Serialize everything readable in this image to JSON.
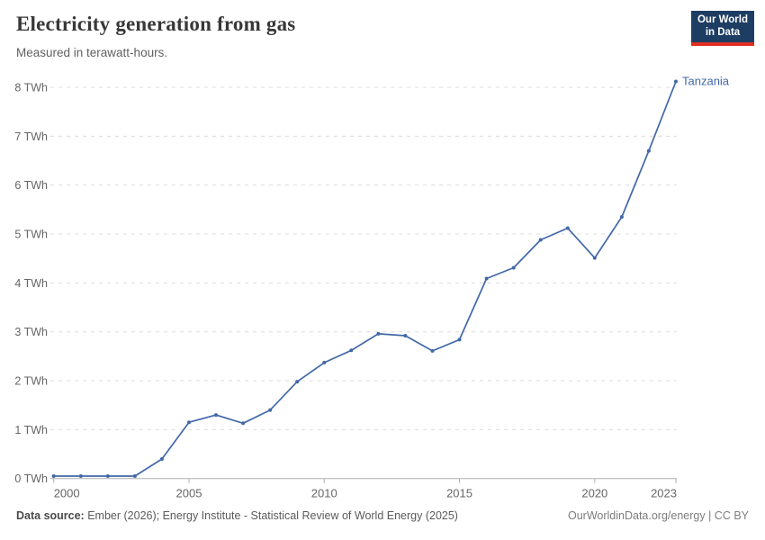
{
  "header": {
    "title": "Electricity generation from gas",
    "subtitle": "Measured in terawatt-hours.",
    "logo": {
      "line1": "Our World",
      "line2": "in Data",
      "bg_color": "#1d3d63",
      "accent_color": "#e02e21"
    }
  },
  "chart_data": {
    "type": "line",
    "title": "Electricity generation from gas",
    "unit": "TWh",
    "x": [
      2000,
      2001,
      2002,
      2003,
      2004,
      2005,
      2006,
      2007,
      2008,
      2009,
      2010,
      2011,
      2012,
      2013,
      2014,
      2015,
      2016,
      2017,
      2018,
      2019,
      2020,
      2021,
      2022,
      2023
    ],
    "series": [
      {
        "name": "Tanzania",
        "color": "#4268a8",
        "values": [
          0.05,
          0.05,
          0.05,
          0.05,
          0.4,
          1.15,
          1.3,
          1.13,
          1.4,
          1.98,
          2.37,
          2.62,
          2.96,
          2.92,
          2.61,
          2.84,
          4.09,
          4.31,
          4.88,
          5.12,
          4.51,
          5.35,
          6.7,
          8.12
        ]
      }
    ],
    "xlim": [
      2000,
      2023
    ],
    "ylim": [
      0,
      8
    ],
    "x_ticks": [
      2000,
      2005,
      2010,
      2015,
      2020,
      2023
    ],
    "y_ticks": [
      0,
      1,
      2,
      3,
      4,
      5,
      6,
      7,
      8
    ],
    "grid": "horizontal-dashed",
    "legend_position": "end-of-line-label",
    "colors": {
      "gridline": "#dcdcdc",
      "axis": "#afafaf",
      "tick_label": "#666666"
    }
  },
  "footer": {
    "source_label": "Data source:",
    "source_text": "Ember (2026); Energy Institute - Statistical Review of World Energy (2025)",
    "credit": "OurWorldinData.org/energy | CC BY"
  }
}
